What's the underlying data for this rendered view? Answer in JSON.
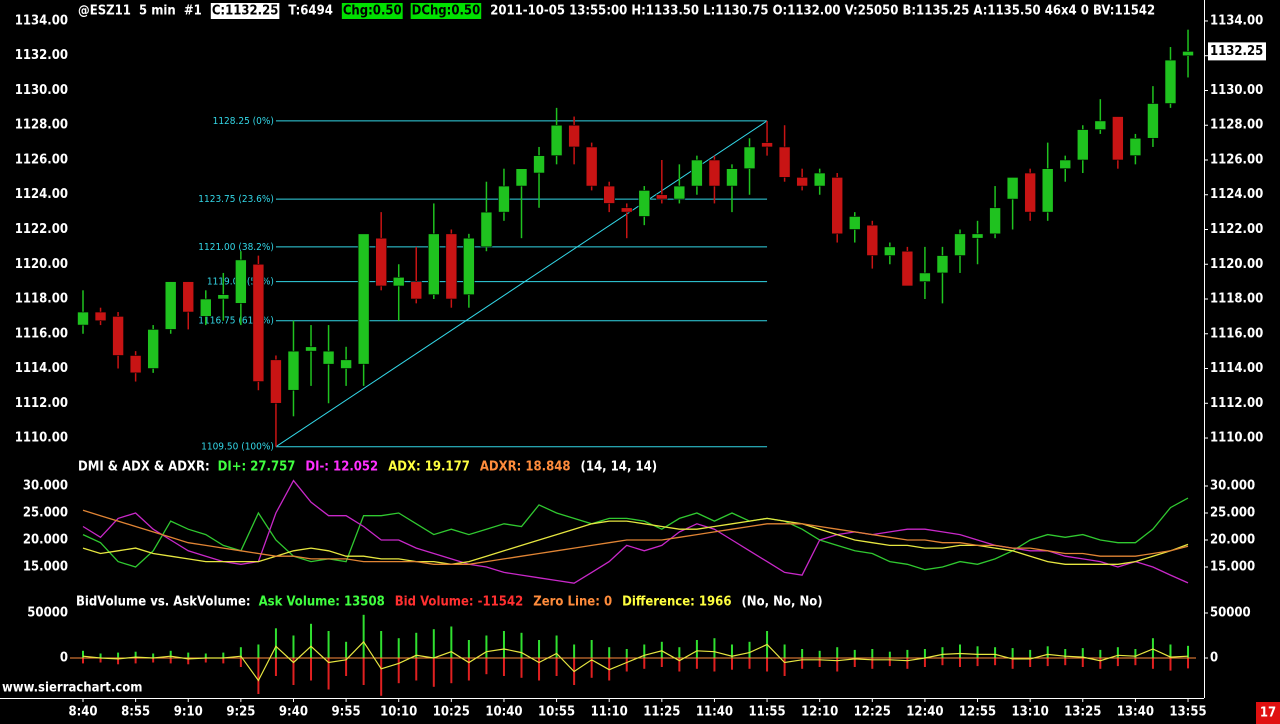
{
  "header": {
    "items": [
      {
        "text": "@ESZ11  5 min  #1",
        "color": "#ffffff"
      },
      {
        "text": "C:1132.25",
        "color": "#000000",
        "background": "#ffffff"
      },
      {
        "text": "T:6494",
        "color": "#ffffff"
      },
      {
        "text": "Chg:0.50",
        "color": "#000000",
        "background": "#00e000"
      },
      {
        "text": "DChg:0.50",
        "color": "#000000",
        "background": "#00e000"
      },
      {
        "text": "2011-10-05 13:55:00 H:1133.50 L:1130.75 O:1132.00 V:25050 B:1135.25 A:1135.50 46x4 0 BV:11542",
        "color": "#ffffff"
      }
    ]
  },
  "chart_data": [
    {
      "type": "candlestick",
      "categories": [
        "8:40",
        null,
        null,
        "8:55",
        null,
        null,
        "9:10",
        null,
        null,
        "9:25",
        null,
        null,
        "9:40",
        null,
        null,
        "9:55",
        null,
        null,
        "10:10",
        null,
        null,
        "10:25",
        null,
        null,
        "10:40",
        null,
        null,
        "10:55",
        null,
        null,
        "11:10",
        null,
        null,
        "11:25",
        null,
        null,
        "11:40",
        null,
        null,
        "11:55",
        null,
        null,
        "12:10",
        null,
        null,
        "12:25",
        null,
        null,
        "12:40",
        null,
        null,
        "12:55",
        null,
        null,
        "13:10",
        null,
        null,
        "13:25",
        null,
        null,
        "13:40",
        null,
        null,
        "13:55"
      ],
      "open": [
        1116.5,
        1117.25,
        1117,
        1114.75,
        1114,
        1116.25,
        1119,
        1117,
        1118,
        1117.75,
        1120,
        1114.5,
        1112.75,
        1115,
        1114.25,
        1114,
        1114.25,
        1121.5,
        1118.75,
        1119,
        1118.25,
        1121.75,
        1118.25,
        1121,
        1123,
        1124.5,
        1125.25,
        1126.25,
        1128,
        1126.75,
        1124.5,
        1123.25,
        1122.75,
        1124,
        1123.75,
        1124.5,
        1126,
        1124.5,
        1125.5,
        1127,
        1126.75,
        1125,
        1124.5,
        1125,
        1122,
        1122.25,
        1120.5,
        1120.75,
        1119,
        1119.5,
        1120.5,
        1121.5,
        1121.75,
        1123.75,
        1125.25,
        1123,
        1125.5,
        1126,
        1127.75,
        1128.5,
        1126.25,
        1127.25,
        1129.25,
        1132
      ],
      "high": [
        1118.5,
        1117.5,
        1117.25,
        1115,
        1116.5,
        1119,
        1119,
        1118.5,
        1119.5,
        1120.75,
        1120.5,
        1114.75,
        1116.75,
        1116.5,
        1116.5,
        1115.25,
        1121.75,
        1123,
        1120,
        1121,
        1123.5,
        1122,
        1121.75,
        1124.75,
        1125.5,
        1125.5,
        1126.75,
        1129,
        1128.5,
        1127,
        1124.75,
        1123.5,
        1124.5,
        1126,
        1125.75,
        1126.25,
        1126.25,
        1125.75,
        1127.25,
        1128.25,
        1128,
        1125.5,
        1125.5,
        1125.25,
        1123,
        1122.5,
        1121.25,
        1121,
        1121,
        1121,
        1122,
        1122.5,
        1124.5,
        1125,
        1125.5,
        1127,
        1126.25,
        1128,
        1129.5,
        1128.5,
        1127.5,
        1130.25,
        1132.5,
        1133.5
      ],
      "low": [
        1116,
        1116.5,
        1114,
        1113.25,
        1113.75,
        1116,
        1116.25,
        1116.5,
        1116.75,
        1116.5,
        1112.75,
        1109.5,
        1111.25,
        1113,
        1112,
        1113,
        1113,
        1118.5,
        1116.75,
        1117.75,
        1118,
        1117.5,
        1117.5,
        1120.75,
        1122.5,
        1121.5,
        1123.25,
        1125.75,
        1125.75,
        1124.25,
        1123,
        1121.5,
        1122.25,
        1123.5,
        1123.5,
        1124,
        1123.5,
        1123,
        1124,
        1126.25,
        1124.75,
        1124.25,
        1124,
        1121.25,
        1121.25,
        1119.75,
        1120,
        1118.75,
        1118,
        1117.75,
        1119.5,
        1120,
        1121.5,
        1122,
        1122.5,
        1122.5,
        1124.75,
        1125.25,
        1127.5,
        1125.5,
        1125.75,
        1126.75,
        1129,
        1130.75
      ],
      "close": [
        1117.25,
        1116.75,
        1114.75,
        1113.75,
        1116.25,
        1119,
        1117.25,
        1118,
        1118.25,
        1120.25,
        1113.25,
        1112,
        1115,
        1115.25,
        1115,
        1114.5,
        1121.75,
        1118.75,
        1119.25,
        1118,
        1121.75,
        1118,
        1121.5,
        1123,
        1124.5,
        1125.5,
        1126.25,
        1128,
        1126.75,
        1124.5,
        1123.5,
        1123,
        1124.25,
        1123.75,
        1124.5,
        1126,
        1124.5,
        1125.5,
        1126.75,
        1126.75,
        1125,
        1124.5,
        1125.25,
        1121.75,
        1122.75,
        1120.5,
        1121,
        1118.75,
        1119.5,
        1120.5,
        1121.75,
        1121.75,
        1123.25,
        1125,
        1123,
        1125.5,
        1126,
        1127.75,
        1128.25,
        1126,
        1127.25,
        1129.25,
        1131.75,
        1132.25
      ],
      "up_color": "#1fc21f",
      "down_color": "#c81414",
      "ylim": [
        1109,
        1135
      ],
      "yticks": [
        {
          "value": 1134,
          "label": "1134.00"
        },
        {
          "value": 1132,
          "label": "1132.00"
        },
        {
          "value": 1130,
          "label": "1130.00"
        },
        {
          "value": 1128,
          "label": "1128.00"
        },
        {
          "value": 1126,
          "label": "1126.00"
        },
        {
          "value": 1124,
          "label": "1124.00"
        },
        {
          "value": 1122,
          "label": "1122.00"
        },
        {
          "value": 1120,
          "label": "1120.00"
        },
        {
          "value": 1118,
          "label": "1118.00"
        },
        {
          "value": 1116,
          "label": "1116.00"
        },
        {
          "value": 1114,
          "label": "1114.00"
        },
        {
          "value": 1112,
          "label": "1112.00"
        },
        {
          "value": 1110,
          "label": "1110.00"
        }
      ],
      "fibonacci": {
        "values": [
          1128.25,
          1123.75,
          1121.0,
          1119.0,
          1116.75,
          1109.5
        ],
        "value_labels": [
          "1128.25 (0%)",
          "1123.75 (23.6%)",
          "1121.00 (38.2%)",
          "1119.00 (50%)",
          "1116.75 (61.8%)",
          "1109.50 (100%)"
        ],
        "color": "#33d6e6"
      }
    },
    {
      "type": "line",
      "title": "DMI & ADX & ADXR:",
      "legend_items": [
        {
          "text": "DI+: 27.757",
          "color": "#40ff40"
        },
        {
          "text": "DI-: 12.052",
          "color": "#ff30ff"
        },
        {
          "text": "ADX: 19.177",
          "color": "#ffff40"
        },
        {
          "text": "ADXR: 18.848",
          "color": "#ff8c3c"
        },
        {
          "text": "(14, 14, 14)",
          "color": "#ffffff"
        }
      ],
      "series": [
        {
          "name": "DI+",
          "color": "#30c830",
          "values": [
            21,
            19.5,
            16,
            15,
            18,
            23.5,
            22,
            21,
            19,
            18,
            25,
            20,
            17,
            16,
            16.5,
            16,
            24.5,
            24.5,
            25,
            23,
            21,
            22,
            21,
            22,
            23,
            22.5,
            26.5,
            25,
            24,
            23,
            24,
            24,
            23.5,
            22,
            24,
            25,
            23.5,
            25,
            23.5,
            24,
            23.5,
            22,
            20,
            19,
            18,
            17.5,
            16,
            15.5,
            14.5,
            15,
            16,
            15.5,
            16.5,
            18,
            20,
            21,
            20.5,
            21,
            20,
            19.5,
            19.5,
            22,
            26,
            27.757
          ]
        },
        {
          "name": "DI-",
          "color": "#c828c8",
          "values": [
            22.5,
            20.5,
            24,
            25,
            22,
            20,
            18,
            17,
            16,
            15.5,
            16,
            25,
            31,
            27,
            24.5,
            24.5,
            22.5,
            20,
            20,
            18.5,
            17.5,
            16.5,
            15.5,
            15,
            14,
            13.5,
            13,
            12.5,
            12,
            14,
            16,
            19,
            18,
            19,
            21.5,
            23,
            22,
            20,
            18,
            16,
            14,
            13.5,
            20,
            21,
            21.5,
            21,
            21.5,
            22,
            22,
            21.5,
            21,
            20,
            19,
            18.5,
            18,
            18,
            17,
            16.5,
            16,
            15,
            16,
            15,
            13.5,
            12.052
          ]
        },
        {
          "name": "ADX",
          "color": "#e6e640",
          "values": [
            18.5,
            17.5,
            18,
            18.5,
            17.5,
            17,
            16.5,
            16,
            16,
            16,
            16,
            17,
            18,
            18.5,
            18,
            17,
            17,
            16.5,
            16.5,
            16,
            16,
            15.5,
            16,
            17,
            18,
            19,
            20,
            21,
            22,
            23,
            23.5,
            23.5,
            23,
            22.5,
            22,
            22,
            22.5,
            23,
            23.5,
            24,
            23.5,
            23,
            22,
            21,
            20,
            19.5,
            19,
            19,
            18.5,
            18.5,
            19,
            19,
            18.5,
            18,
            17,
            16,
            15.5,
            15.5,
            15.5,
            15.5,
            16,
            17,
            18,
            19.177
          ]
        },
        {
          "name": "ADXR",
          "color": "#e08434",
          "values": [
            25.5,
            24.5,
            23.5,
            22.5,
            21.5,
            20.5,
            19.5,
            19,
            18.5,
            18,
            17.5,
            17,
            17,
            16.5,
            16.5,
            16.5,
            16,
            16,
            16,
            16,
            15.5,
            15.5,
            15.5,
            16,
            16.5,
            17,
            17.5,
            18,
            18.5,
            19,
            19.5,
            20,
            20,
            20,
            20.5,
            21,
            21.5,
            22,
            22.5,
            23,
            23,
            23,
            22.5,
            22,
            21.5,
            21,
            20.5,
            20,
            20,
            19.5,
            19.5,
            19,
            19,
            18.5,
            18.5,
            18,
            17.5,
            17.5,
            17,
            17,
            17,
            17.5,
            18,
            18.848
          ]
        }
      ],
      "ylim": [
        11,
        35
      ],
      "yticks": [
        {
          "value": 30,
          "label": "30.000"
        },
        {
          "value": 25,
          "label": "25.000"
        },
        {
          "value": 20,
          "label": "20.000"
        },
        {
          "value": 15,
          "label": "15.000"
        }
      ]
    },
    {
      "type": "volume",
      "title": "BidVolume vs. AskVolume:",
      "legend_items": [
        {
          "text": "Ask Volume: 13508",
          "color": "#40ff40"
        },
        {
          "text": "Bid Volume: -11542",
          "color": "#ff3030"
        },
        {
          "text": "Zero Line: 0",
          "color": "#ff8c3c"
        },
        {
          "text": "Difference: 1966",
          "color": "#ffff40"
        },
        {
          "text": "(No, No, No)",
          "color": "#ffffff"
        }
      ],
      "series": [
        {
          "name": "Ask Volume",
          "color": "#30e030",
          "values": [
            8000,
            5000,
            6000,
            7000,
            5000,
            8000,
            6000,
            5000,
            6000,
            12000,
            15000,
            33000,
            25000,
            38000,
            30000,
            18000,
            48000,
            30000,
            22000,
            28000,
            32000,
            35000,
            20000,
            25000,
            30000,
            28000,
            20000,
            25000,
            15000,
            20000,
            12000,
            10000,
            15000,
            18000,
            12000,
            20000,
            22000,
            15000,
            18000,
            30000,
            15000,
            10000,
            8000,
            12000,
            9000,
            10000,
            7000,
            9000,
            10000,
            12000,
            15000,
            13000,
            12000,
            11000,
            9000,
            13000,
            10000,
            11000,
            9000,
            12000,
            10000,
            22000,
            15000,
            13508
          ]
        },
        {
          "name": "Bid Volume",
          "color": "#e02020",
          "values": [
            -6000,
            -5000,
            -7000,
            -6000,
            -5000,
            -6000,
            -7000,
            -5000,
            -6000,
            -10000,
            -40000,
            -20000,
            -30000,
            -25000,
            -35000,
            -20000,
            -30000,
            -42000,
            -28000,
            -25000,
            -32000,
            -28000,
            -25000,
            -18000,
            -20000,
            -22000,
            -25000,
            -20000,
            -30000,
            -22000,
            -25000,
            -15000,
            -12000,
            -10000,
            -15000,
            -12000,
            -15000,
            -13000,
            -12000,
            -15000,
            -20000,
            -12000,
            -10000,
            -15000,
            -10000,
            -12000,
            -9000,
            -12000,
            -10000,
            -8000,
            -10000,
            -9000,
            -8000,
            -12000,
            -10000,
            -9000,
            -8000,
            -10000,
            -12000,
            -9000,
            -8000,
            -12000,
            -14000,
            -11542
          ]
        },
        {
          "name": "Difference",
          "color": "#e6e640",
          "values": [
            2000,
            0,
            -1000,
            1000,
            0,
            2000,
            -1000,
            0,
            0,
            2000,
            -25000,
            13000,
            -5000,
            13000,
            -5000,
            -2000,
            18000,
            -12000,
            -6000,
            3000,
            0,
            7000,
            -5000,
            7000,
            10000,
            6000,
            -5000,
            5000,
            -15000,
            -2000,
            -13000,
            -5000,
            3000,
            8000,
            -3000,
            8000,
            7000,
            2000,
            6000,
            15000,
            -5000,
            -2000,
            -2000,
            -3000,
            -1000,
            -2000,
            -2000,
            -3000,
            0,
            4000,
            5000,
            4000,
            4000,
            -1000,
            -1000,
            4000,
            2000,
            1000,
            -3000,
            3000,
            2000,
            10000,
            1000,
            1966
          ]
        }
      ],
      "zero_line": {
        "value": 0,
        "color": "#ff8c3c"
      },
      "ylim": [
        -45000,
        70000
      ],
      "yticks": [
        50000,
        0
      ]
    }
  ],
  "footer": {
    "website": "www.sierrachart.com",
    "badge": "17"
  }
}
